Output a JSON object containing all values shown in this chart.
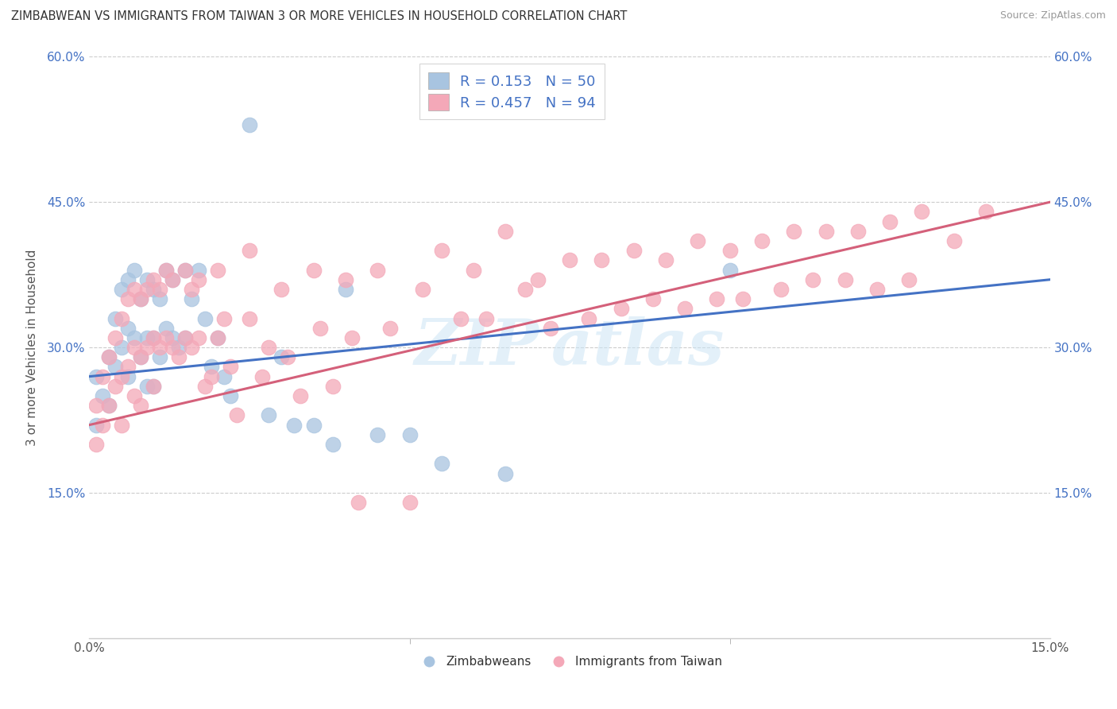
{
  "title": "ZIMBABWEAN VS IMMIGRANTS FROM TAIWAN 3 OR MORE VEHICLES IN HOUSEHOLD CORRELATION CHART",
  "source": "Source: ZipAtlas.com",
  "ylabel": "3 or more Vehicles in Household",
  "xmin": 0.0,
  "xmax": 0.15,
  "ymin": 0.0,
  "ymax": 0.6,
  "color_blue": "#a8c4e0",
  "color_pink": "#f4a8b8",
  "line_color_blue": "#4472c4",
  "line_color_pink": "#d4607a",
  "legend_label1": "Zimbabweans",
  "legend_label2": "Immigrants from Taiwan",
  "R1": "0.153",
  "N1": "50",
  "R2": "0.457",
  "N2": "94",
  "blue_x": [
    0.001,
    0.001,
    0.002,
    0.003,
    0.003,
    0.004,
    0.004,
    0.005,
    0.005,
    0.006,
    0.006,
    0.006,
    0.007,
    0.007,
    0.008,
    0.008,
    0.009,
    0.009,
    0.009,
    0.01,
    0.01,
    0.01,
    0.011,
    0.011,
    0.012,
    0.012,
    0.013,
    0.013,
    0.014,
    0.015,
    0.015,
    0.016,
    0.017,
    0.018,
    0.019,
    0.02,
    0.021,
    0.022,
    0.025,
    0.028,
    0.03,
    0.032,
    0.035,
    0.038,
    0.04,
    0.045,
    0.05,
    0.055,
    0.065,
    0.1
  ],
  "blue_y": [
    0.27,
    0.22,
    0.25,
    0.29,
    0.24,
    0.33,
    0.28,
    0.36,
    0.3,
    0.37,
    0.32,
    0.27,
    0.38,
    0.31,
    0.35,
    0.29,
    0.37,
    0.31,
    0.26,
    0.36,
    0.31,
    0.26,
    0.35,
    0.29,
    0.38,
    0.32,
    0.37,
    0.31,
    0.3,
    0.38,
    0.31,
    0.35,
    0.38,
    0.33,
    0.28,
    0.31,
    0.27,
    0.25,
    0.53,
    0.23,
    0.29,
    0.22,
    0.22,
    0.2,
    0.36,
    0.21,
    0.21,
    0.18,
    0.17,
    0.38
  ],
  "pink_x": [
    0.001,
    0.001,
    0.002,
    0.002,
    0.003,
    0.003,
    0.004,
    0.004,
    0.005,
    0.005,
    0.005,
    0.006,
    0.006,
    0.007,
    0.007,
    0.007,
    0.008,
    0.008,
    0.008,
    0.009,
    0.009,
    0.01,
    0.01,
    0.01,
    0.011,
    0.011,
    0.012,
    0.012,
    0.013,
    0.013,
    0.014,
    0.015,
    0.015,
    0.016,
    0.016,
    0.017,
    0.017,
    0.018,
    0.019,
    0.02,
    0.02,
    0.021,
    0.022,
    0.023,
    0.025,
    0.025,
    0.027,
    0.028,
    0.03,
    0.031,
    0.033,
    0.035,
    0.036,
    0.038,
    0.04,
    0.041,
    0.042,
    0.045,
    0.047,
    0.05,
    0.052,
    0.055,
    0.058,
    0.06,
    0.062,
    0.065,
    0.068,
    0.07,
    0.072,
    0.075,
    0.078,
    0.08,
    0.083,
    0.085,
    0.088,
    0.09,
    0.093,
    0.095,
    0.098,
    0.1,
    0.102,
    0.105,
    0.108,
    0.11,
    0.113,
    0.115,
    0.118,
    0.12,
    0.123,
    0.125,
    0.128,
    0.13,
    0.135,
    0.14
  ],
  "pink_y": [
    0.24,
    0.2,
    0.27,
    0.22,
    0.29,
    0.24,
    0.31,
    0.26,
    0.33,
    0.27,
    0.22,
    0.35,
    0.28,
    0.36,
    0.3,
    0.25,
    0.35,
    0.29,
    0.24,
    0.36,
    0.3,
    0.37,
    0.31,
    0.26,
    0.36,
    0.3,
    0.38,
    0.31,
    0.37,
    0.3,
    0.29,
    0.38,
    0.31,
    0.36,
    0.3,
    0.37,
    0.31,
    0.26,
    0.27,
    0.38,
    0.31,
    0.33,
    0.28,
    0.23,
    0.4,
    0.33,
    0.27,
    0.3,
    0.36,
    0.29,
    0.25,
    0.38,
    0.32,
    0.26,
    0.37,
    0.31,
    0.14,
    0.38,
    0.32,
    0.14,
    0.36,
    0.4,
    0.33,
    0.38,
    0.33,
    0.42,
    0.36,
    0.37,
    0.32,
    0.39,
    0.33,
    0.39,
    0.34,
    0.4,
    0.35,
    0.39,
    0.34,
    0.41,
    0.35,
    0.4,
    0.35,
    0.41,
    0.36,
    0.42,
    0.37,
    0.42,
    0.37,
    0.42,
    0.36,
    0.43,
    0.37,
    0.44,
    0.41,
    0.44
  ]
}
